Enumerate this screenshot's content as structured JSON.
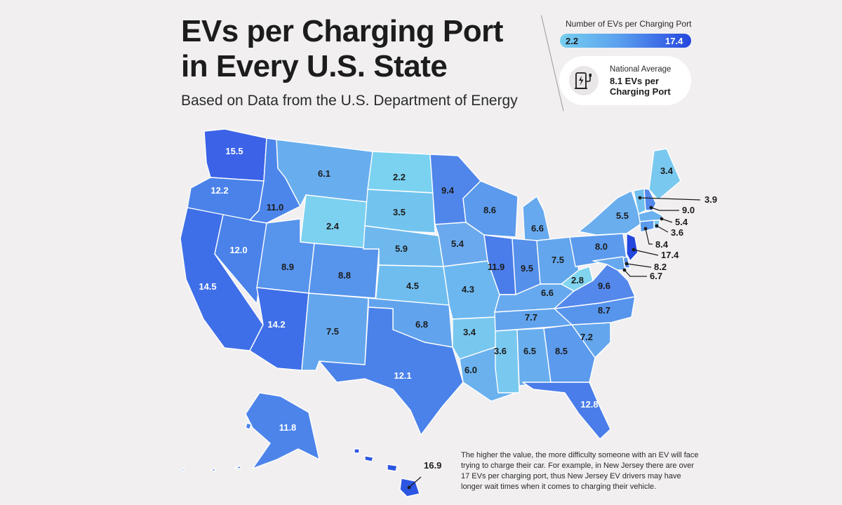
{
  "title_line1": "EVs per Charging Port",
  "title_line2": "in Every U.S. State",
  "subtitle": "Based on Data from the U.S. Department of Energy",
  "legend": {
    "title": "Number of EVs per Charging Port",
    "min": "2.2",
    "max": "17.4",
    "colors": [
      "#78cff0",
      "#5aa0ee",
      "#3f6fe8",
      "#2447de"
    ]
  },
  "national_average": {
    "label": "National Average",
    "value": "8.1 EVs per Charging Port",
    "icon": "ev-charger-icon"
  },
  "note": "The higher the value, the more difficulty someone with an EV will face trying to charge their car. For example, in New Jersey there are over 17 EVs per charging port, thus New Jersey EV drivers may have longer wait times when it comes to charging their vehicle.",
  "states": {
    "wa": {
      "value": "15.5"
    },
    "or": {
      "value": "12.2"
    },
    "ca": {
      "value": "14.5"
    },
    "nv": {
      "value": "12.0"
    },
    "id": {
      "value": "11.0"
    },
    "mt": {
      "value": "6.1"
    },
    "wy": {
      "value": "2.4"
    },
    "ut": {
      "value": "8.9"
    },
    "az": {
      "value": "14.2"
    },
    "co": {
      "value": "8.8"
    },
    "nm": {
      "value": "7.5"
    },
    "nd": {
      "value": "2.2"
    },
    "sd": {
      "value": "3.5"
    },
    "ne": {
      "value": "5.9"
    },
    "ks": {
      "value": "4.5"
    },
    "ok": {
      "value": "6.8"
    },
    "tx": {
      "value": "12.1"
    },
    "mn": {
      "value": "9.4"
    },
    "ia": {
      "value": "5.4"
    },
    "mo": {
      "value": "4.3"
    },
    "ar": {
      "value": "3.4"
    },
    "la": {
      "value": "6.0"
    },
    "wi": {
      "value": "8.6"
    },
    "il": {
      "value": "11.9"
    },
    "mi": {
      "value": "6.6"
    },
    "in": {
      "value": "9.5"
    },
    "oh": {
      "value": "7.5"
    },
    "ky": {
      "value": "6.6"
    },
    "tn": {
      "value": "7.7"
    },
    "ms": {
      "value": "3.6"
    },
    "al": {
      "value": "6.5"
    },
    "ga": {
      "value": "8.5"
    },
    "fl": {
      "value": "12.8"
    },
    "sc": {
      "value": "7.2"
    },
    "nc": {
      "value": "8.7"
    },
    "va": {
      "value": "9.6"
    },
    "wv": {
      "value": "2.8"
    },
    "pa": {
      "value": "8.0"
    },
    "ny": {
      "value": "5.5"
    },
    "me": {
      "value": "3.4"
    },
    "vt": {
      "value": "3.9"
    },
    "nh": {
      "value": "9.0"
    },
    "ma": {
      "value": "5.4"
    },
    "ri": {
      "value": "3.6"
    },
    "ct": {
      "value": "8.4"
    },
    "nj": {
      "value": "17.4"
    },
    "de": {
      "value": "8.2"
    },
    "md": {
      "value": "6.7"
    },
    "ak": {
      "value": "11.8"
    },
    "hi": {
      "value": "16.9"
    }
  }
}
